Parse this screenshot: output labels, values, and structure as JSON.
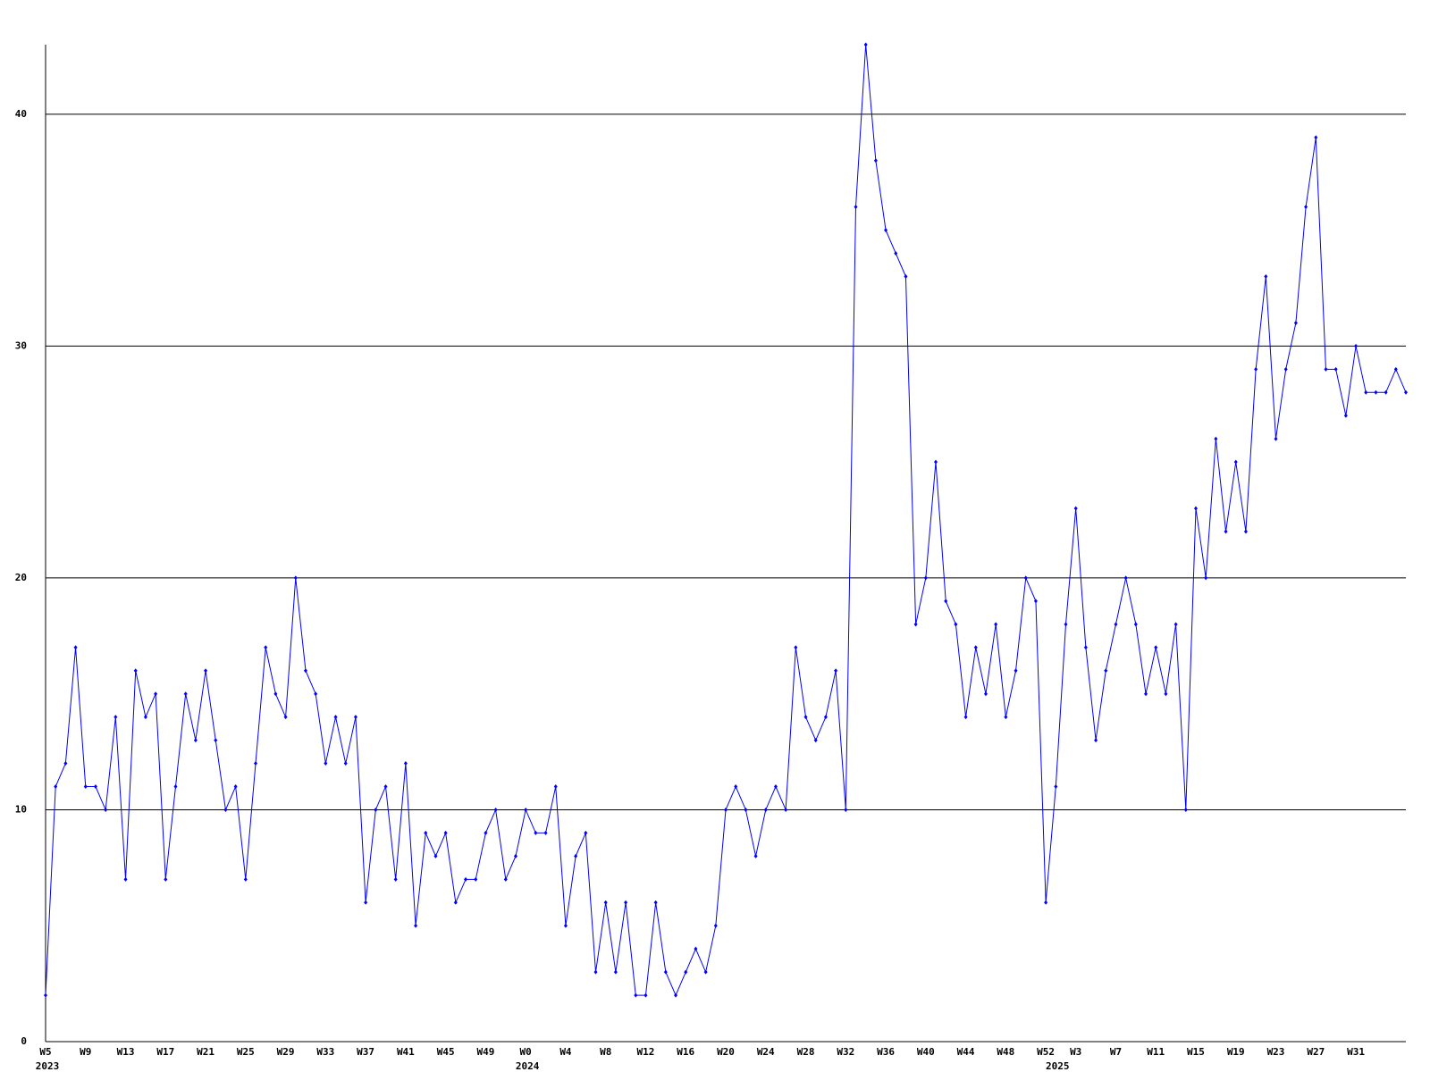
{
  "chart_data": {
    "type": "line",
    "categories": [
      "W5",
      null,
      null,
      null,
      "W9",
      null,
      null,
      null,
      "W13",
      null,
      null,
      null,
      "W17",
      null,
      null,
      null,
      "W21",
      null,
      null,
      null,
      "W25",
      null,
      null,
      null,
      "W29",
      null,
      null,
      null,
      "W33",
      null,
      null,
      null,
      "W37",
      null,
      null,
      null,
      "W41",
      null,
      null,
      null,
      "W45",
      null,
      null,
      null,
      "W49",
      null,
      null,
      null,
      "W0",
      null,
      null,
      null,
      "W4",
      null,
      null,
      null,
      "W8",
      null,
      null,
      null,
      "W12",
      null,
      null,
      null,
      "W16",
      null,
      null,
      null,
      "W20",
      null,
      null,
      null,
      "W24",
      null,
      null,
      null,
      "W28",
      null,
      null,
      null,
      "W32",
      null,
      null,
      null,
      "W36",
      null,
      null,
      null,
      "W40",
      null,
      null,
      null,
      "W44",
      null,
      null,
      null,
      "W48",
      null,
      null,
      null,
      "W52",
      null,
      null,
      "W3",
      null,
      null,
      null,
      "W7",
      null,
      null,
      null,
      "W11",
      null,
      null,
      null,
      "W15",
      null,
      null,
      null,
      "W19",
      null,
      null,
      null,
      "W23",
      null,
      null,
      null,
      "W27",
      null,
      null,
      null,
      "W31",
      null,
      null,
      null,
      null,
      null
    ],
    "year_labels": [
      "2023",
      null,
      null,
      null,
      null,
      null,
      null,
      null,
      null,
      null,
      null,
      null,
      null,
      null,
      null,
      null,
      null,
      null,
      null,
      null,
      null,
      null,
      null,
      null,
      null,
      null,
      null,
      null,
      null,
      null,
      null,
      null,
      null,
      null,
      null,
      null,
      null,
      null,
      null,
      null,
      null,
      null,
      null,
      null,
      null,
      null,
      null,
      null,
      "2024",
      null,
      null,
      null,
      null,
      null,
      null,
      null,
      null,
      null,
      null,
      null,
      null,
      null,
      null,
      null,
      null,
      null,
      null,
      null,
      null,
      null,
      null,
      null,
      null,
      null,
      null,
      null,
      null,
      null,
      null,
      null,
      null,
      null,
      null,
      null,
      null,
      null,
      null,
      null,
      null,
      null,
      null,
      null,
      null,
      null,
      null,
      null,
      null,
      null,
      null,
      null,
      null,
      "2025",
      null,
      null,
      null,
      null,
      null,
      null,
      null,
      null,
      null,
      null,
      null,
      null,
      null,
      null,
      null,
      null,
      null,
      null,
      null,
      null,
      null,
      null,
      null,
      null,
      null,
      null,
      null,
      null,
      null,
      null,
      null,
      null,
      null,
      null,
      null
    ],
    "series": [
      {
        "color": "#0000ff",
        "values": [
          2,
          11,
          12,
          17,
          11,
          11,
          10,
          14,
          7,
          16,
          14,
          15,
          7,
          11,
          15,
          13,
          16,
          13,
          10,
          11,
          7,
          12,
          17,
          15,
          14,
          20,
          16,
          15,
          12,
          14,
          12,
          14,
          6,
          10,
          11,
          7,
          12,
          5,
          9,
          8,
          9,
          6,
          7,
          7,
          9,
          10,
          7,
          8,
          10,
          9,
          9,
          11,
          5,
          8,
          9,
          3,
          6,
          3,
          6,
          2,
          2,
          6,
          3,
          2,
          3,
          4,
          3,
          5,
          10,
          11,
          10,
          8,
          10,
          11,
          10,
          17,
          14,
          13,
          14,
          16,
          10,
          36,
          43,
          38,
          35,
          34,
          33,
          18,
          20,
          25,
          19,
          18,
          14,
          17,
          15,
          18,
          14,
          16,
          20,
          19,
          6,
          11,
          18,
          23,
          17,
          13,
          16,
          18,
          20,
          18,
          15,
          17,
          15,
          18,
          10,
          23,
          20,
          26,
          22,
          25,
          22,
          29,
          33,
          26,
          29,
          31,
          36,
          39,
          29,
          29,
          27,
          30,
          28,
          28,
          28,
          29,
          28
        ]
      }
    ],
    "ylim": [
      0,
      43
    ],
    "yticks": [
      0,
      10,
      20,
      30,
      40
    ],
    "grid": true
  }
}
